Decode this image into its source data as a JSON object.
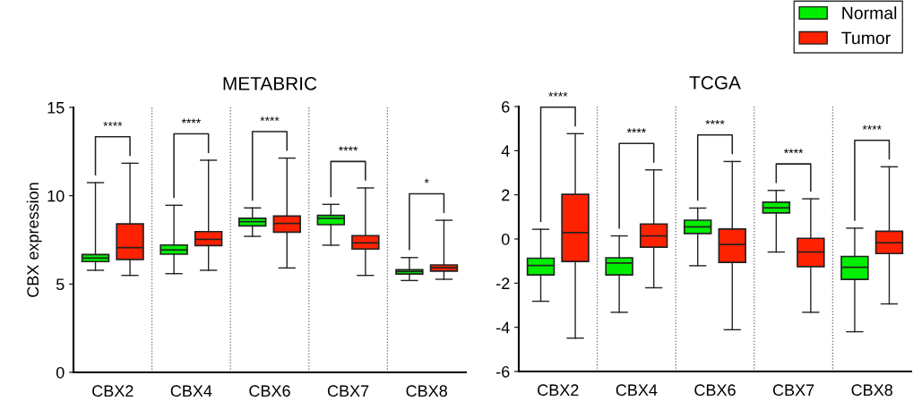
{
  "chart_data": [
    {
      "type": "box",
      "title": "METABRIC",
      "ylabel": "CBX expression",
      "categories": [
        "CBX2",
        "CBX4",
        "CBX6",
        "CBX7",
        "CBX8"
      ],
      "ylim": [
        0,
        15
      ],
      "yticks": [
        0,
        5,
        10,
        15
      ],
      "grid": "x",
      "legend": false,
      "series": [
        {
          "color": "#00ee00",
          "boxes": [
            {
              "low": 5.78,
              "q1": 6.27,
              "median": 6.47,
              "q3": 6.67,
              "high": 10.74
            },
            {
              "low": 5.59,
              "q1": 6.69,
              "median": 6.93,
              "q3": 7.21,
              "high": 9.46
            },
            {
              "low": 7.7,
              "q1": 8.29,
              "median": 8.53,
              "q3": 8.72,
              "high": 9.31
            },
            {
              "low": 7.2,
              "q1": 8.36,
              "median": 8.72,
              "q3": 8.89,
              "high": 9.51
            },
            {
              "low": 5.2,
              "q1": 5.57,
              "median": 5.71,
              "q3": 5.81,
              "high": 6.5
            }
          ]
        },
        {
          "color": "#ff2200",
          "boxes": [
            {
              "low": 5.49,
              "q1": 6.39,
              "median": 7.06,
              "q3": 8.41,
              "high": 11.84
            },
            {
              "low": 5.78,
              "q1": 7.18,
              "median": 7.53,
              "q3": 7.97,
              "high": 12.01
            },
            {
              "low": 5.91,
              "q1": 7.94,
              "median": 8.43,
              "q3": 8.85,
              "high": 12.13
            },
            {
              "low": 5.49,
              "q1": 6.98,
              "median": 7.33,
              "q3": 7.74,
              "high": 10.44
            },
            {
              "low": 5.27,
              "q1": 5.73,
              "median": 5.93,
              "q3": 6.08,
              "high": 8.61
            }
          ]
        }
      ],
      "annotations": [
        "****",
        "****",
        "****",
        "****",
        "*"
      ]
    },
    {
      "type": "box",
      "title": "TCGA",
      "categories": [
        "CBX2",
        "CBX4",
        "CBX6",
        "CBX7",
        "CBX8"
      ],
      "ylim": [
        -6,
        6
      ],
      "yticks": [
        -6,
        -4,
        -2,
        0,
        2,
        4,
        6
      ],
      "grid": "x",
      "legend": "top right",
      "series": [
        {
          "name": "Normal",
          "color": "#00ee00",
          "boxes": [
            {
              "low": -2.82,
              "q1": -1.63,
              "median": -1.2,
              "q3": -0.87,
              "high": 0.44
            },
            {
              "low": -3.32,
              "q1": -1.63,
              "median": -1.09,
              "q3": -0.85,
              "high": 0.14
            },
            {
              "low": -1.21,
              "q1": 0.25,
              "median": 0.55,
              "q3": 0.85,
              "high": 1.4
            },
            {
              "low": -0.59,
              "q1": 1.18,
              "median": 1.41,
              "q3": 1.67,
              "high": 2.2
            },
            {
              "low": -4.2,
              "q1": -1.83,
              "median": -1.28,
              "q3": -0.79,
              "high": 0.49
            }
          ]
        },
        {
          "name": "Tumor",
          "color": "#ff2200",
          "boxes": [
            {
              "low": -4.49,
              "q1": -1.02,
              "median": 0.29,
              "q3": 2.02,
              "high": 4.77
            },
            {
              "low": -2.21,
              "q1": -0.37,
              "median": 0.14,
              "q3": 0.68,
              "high": 3.13
            },
            {
              "low": -4.11,
              "q1": -1.06,
              "median": -0.25,
              "q3": 0.45,
              "high": 3.51
            },
            {
              "low": -3.32,
              "q1": -1.25,
              "median": -0.59,
              "q3": 0.03,
              "high": 1.82
            },
            {
              "low": -2.94,
              "q1": -0.66,
              "median": -0.17,
              "q3": 0.35,
              "high": 3.27
            }
          ]
        }
      ],
      "annotations": [
        "****",
        "****",
        "****",
        "****",
        "****"
      ]
    }
  ]
}
